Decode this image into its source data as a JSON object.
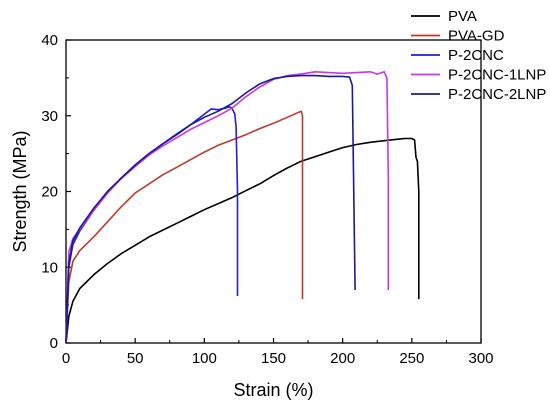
{
  "chart_data": {
    "type": "line",
    "title": "",
    "xlabel": "Strain (%)",
    "ylabel": "Strength (MPa)",
    "xlim": [
      0,
      300
    ],
    "ylim": [
      0,
      40
    ],
    "x_ticks": [
      0,
      50,
      100,
      150,
      200,
      250,
      300
    ],
    "y_ticks": [
      0,
      10,
      20,
      30,
      40
    ],
    "x_tick_labels": [
      "0",
      "50",
      "100",
      "150",
      "200",
      "250",
      "300"
    ],
    "y_tick_labels": [
      "0",
      "10",
      "20",
      "30",
      "40"
    ],
    "grid": false,
    "legend_position": "top-right",
    "series": [
      {
        "name": "PVA",
        "color": "#000000",
        "x": [
          0,
          2,
          5,
          10,
          20,
          30,
          40,
          50,
          60,
          70,
          80,
          90,
          100,
          110,
          120,
          130,
          140,
          150,
          160,
          170,
          180,
          190,
          200,
          210,
          220,
          230,
          240,
          245,
          250,
          252,
          253,
          254,
          255,
          255
        ],
        "y": [
          0,
          3.5,
          5.5,
          7.2,
          9.0,
          10.5,
          11.8,
          12.9,
          14.0,
          14.9,
          15.8,
          16.7,
          17.6,
          18.4,
          19.2,
          20.1,
          21.0,
          22.1,
          23.1,
          24.0,
          24.6,
          25.2,
          25.8,
          26.2,
          26.5,
          26.7,
          26.9,
          27.0,
          27.0,
          26.8,
          24.5,
          24.0,
          20.0,
          5.8
        ]
      },
      {
        "name": "PVA-GD",
        "color": "#c0392b",
        "x": [
          0,
          2,
          5,
          10,
          20,
          30,
          40,
          50,
          60,
          70,
          80,
          90,
          100,
          110,
          120,
          130,
          140,
          150,
          160,
          165,
          170,
          171,
          171
        ],
        "y": [
          0,
          8.0,
          10.8,
          12.2,
          14.0,
          16.0,
          18.0,
          19.8,
          21.0,
          22.2,
          23.2,
          24.2,
          25.2,
          26.1,
          26.8,
          27.5,
          28.3,
          29.0,
          29.8,
          30.2,
          30.6,
          30.0,
          5.8
        ]
      },
      {
        "name": "P-2CNC",
        "color": "#1f1fd6",
        "x": [
          0,
          2,
          5,
          10,
          20,
          30,
          40,
          50,
          60,
          70,
          80,
          90,
          100,
          105,
          110,
          115,
          118,
          120,
          122,
          123,
          124,
          124
        ],
        "y": [
          0,
          10.0,
          13.0,
          14.8,
          17.5,
          19.8,
          21.8,
          23.5,
          25.0,
          26.3,
          27.6,
          28.8,
          30.2,
          30.9,
          30.8,
          31.0,
          31.2,
          31.0,
          30.2,
          28.5,
          20.0,
          6.2
        ]
      },
      {
        "name": "P-2CNC-1LNP",
        "color": "#cc33ee",
        "x": [
          0,
          2,
          5,
          10,
          20,
          30,
          40,
          50,
          60,
          70,
          80,
          90,
          100,
          110,
          120,
          130,
          140,
          150,
          160,
          170,
          180,
          190,
          200,
          210,
          220,
          225,
          230,
          232,
          233,
          233
        ],
        "y": [
          0,
          12.0,
          13.8,
          15.0,
          17.5,
          19.8,
          21.7,
          23.3,
          24.8,
          26.0,
          27.1,
          28.2,
          29.1,
          30.0,
          31.0,
          32.5,
          33.8,
          34.8,
          35.3,
          35.5,
          35.8,
          35.7,
          35.6,
          35.7,
          35.8,
          35.5,
          35.8,
          35.0,
          22.0,
          7.0
        ]
      },
      {
        "name": "P-2CNC-2LNP",
        "color": "#1a1a99",
        "x": [
          0,
          2,
          5,
          10,
          20,
          30,
          40,
          50,
          60,
          70,
          80,
          90,
          100,
          110,
          120,
          130,
          140,
          150,
          160,
          170,
          180,
          190,
          200,
          205,
          207,
          209,
          209
        ],
        "y": [
          0,
          10.5,
          13.5,
          15.2,
          17.8,
          20.0,
          21.8,
          23.5,
          25.0,
          26.3,
          27.5,
          28.8,
          29.8,
          30.6,
          31.6,
          33.0,
          34.2,
          34.9,
          35.2,
          35.3,
          35.3,
          35.2,
          35.2,
          35.1,
          34.0,
          7.0,
          7.0
        ]
      }
    ]
  }
}
